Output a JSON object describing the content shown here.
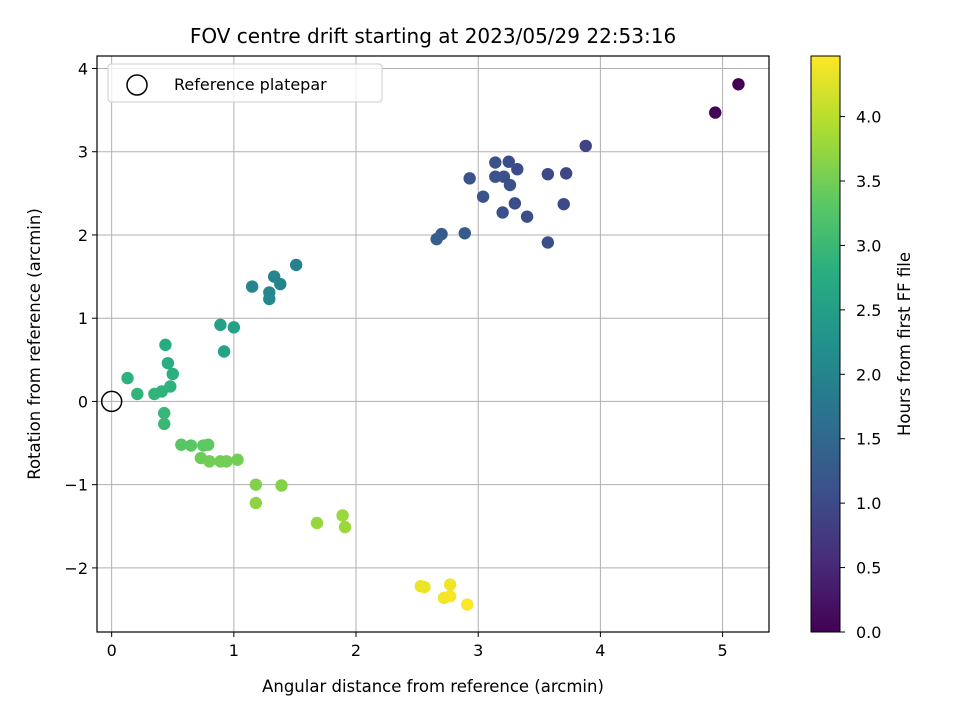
{
  "chart_data": {
    "type": "scatter",
    "title": "FOV centre drift starting at 2023/05/29 22:53:16",
    "xlabel": "Angular distance from reference (arcmin)",
    "ylabel": "Rotation from reference (arcmin)",
    "xlim": [
      -0.12,
      5.38
    ],
    "ylim": [
      -2.77,
      4.15
    ],
    "xticks": [
      0,
      1,
      2,
      3,
      4,
      5
    ],
    "yticks": [
      -2,
      -1,
      0,
      1,
      2,
      3,
      4
    ],
    "grid": true,
    "legend": {
      "placement": "top-left",
      "entries": [
        "Reference platepar"
      ]
    },
    "reference": {
      "x": 0,
      "y": 0,
      "marker": "open-circle"
    },
    "colorbar": {
      "label": "Hours from first FF file",
      "colormap": "viridis",
      "range": [
        0,
        4.47
      ],
      "ticks": [
        0.0,
        0.5,
        1.0,
        1.5,
        2.0,
        2.5,
        3.0,
        3.5,
        4.0
      ],
      "tick_labels": [
        "0.0",
        "0.5",
        "1.0",
        "1.5",
        "2.0",
        "2.5",
        "3.0",
        "3.5",
        "4.0"
      ]
    },
    "points": [
      {
        "x": 5.13,
        "y": 3.81,
        "c": 0.0
      },
      {
        "x": 4.94,
        "y": 3.47,
        "c": 0.05
      },
      {
        "x": 3.88,
        "y": 3.07,
        "c": 0.9
      },
      {
        "x": 3.72,
        "y": 2.74,
        "c": 0.95
      },
      {
        "x": 3.57,
        "y": 2.73,
        "c": 0.98
      },
      {
        "x": 3.7,
        "y": 2.37,
        "c": 0.98
      },
      {
        "x": 3.57,
        "y": 1.91,
        "c": 1.05
      },
      {
        "x": 3.4,
        "y": 2.22,
        "c": 1.05
      },
      {
        "x": 3.3,
        "y": 2.38,
        "c": 1.05
      },
      {
        "x": 3.32,
        "y": 2.79,
        "c": 1.02
      },
      {
        "x": 3.25,
        "y": 2.88,
        "c": 1.05
      },
      {
        "x": 3.21,
        "y": 2.7,
        "c": 1.08
      },
      {
        "x": 3.26,
        "y": 2.6,
        "c": 1.1
      },
      {
        "x": 3.14,
        "y": 2.87,
        "c": 1.1
      },
      {
        "x": 3.14,
        "y": 2.7,
        "c": 1.12
      },
      {
        "x": 3.2,
        "y": 2.27,
        "c": 1.1
      },
      {
        "x": 3.04,
        "y": 2.46,
        "c": 1.15
      },
      {
        "x": 2.93,
        "y": 2.68,
        "c": 1.15
      },
      {
        "x": 2.89,
        "y": 2.02,
        "c": 1.25
      },
      {
        "x": 2.7,
        "y": 2.01,
        "c": 1.3
      },
      {
        "x": 2.66,
        "y": 1.95,
        "c": 1.35
      },
      {
        "x": 1.51,
        "y": 1.64,
        "c": 1.95
      },
      {
        "x": 1.33,
        "y": 1.5,
        "c": 2.0
      },
      {
        "x": 1.38,
        "y": 1.41,
        "c": 2.02
      },
      {
        "x": 1.15,
        "y": 1.38,
        "c": 2.05
      },
      {
        "x": 1.29,
        "y": 1.31,
        "c": 2.05
      },
      {
        "x": 1.29,
        "y": 1.23,
        "c": 2.08
      },
      {
        "x": 0.89,
        "y": 0.92,
        "c": 2.55
      },
      {
        "x": 1.0,
        "y": 0.89,
        "c": 2.55
      },
      {
        "x": 0.92,
        "y": 0.6,
        "c": 2.58
      },
      {
        "x": 0.44,
        "y": 0.68,
        "c": 2.75
      },
      {
        "x": 0.46,
        "y": 0.46,
        "c": 2.8
      },
      {
        "x": 0.5,
        "y": 0.33,
        "c": 2.82
      },
      {
        "x": 0.13,
        "y": 0.28,
        "c": 2.85
      },
      {
        "x": 0.48,
        "y": 0.18,
        "c": 2.85
      },
      {
        "x": 0.41,
        "y": 0.12,
        "c": 2.88
      },
      {
        "x": 0.35,
        "y": 0.09,
        "c": 2.9
      },
      {
        "x": 0.21,
        "y": 0.09,
        "c": 2.9
      },
      {
        "x": 0.43,
        "y": -0.14,
        "c": 2.95
      },
      {
        "x": 0.43,
        "y": -0.27,
        "c": 2.98
      },
      {
        "x": 0.57,
        "y": -0.52,
        "c": 3.3
      },
      {
        "x": 0.65,
        "y": -0.53,
        "c": 3.32
      },
      {
        "x": 0.75,
        "y": -0.53,
        "c": 3.35
      },
      {
        "x": 0.79,
        "y": -0.52,
        "c": 3.35
      },
      {
        "x": 0.73,
        "y": -0.68,
        "c": 3.45
      },
      {
        "x": 0.8,
        "y": -0.72,
        "c": 3.48
      },
      {
        "x": 0.89,
        "y": -0.72,
        "c": 3.5
      },
      {
        "x": 0.94,
        "y": -0.72,
        "c": 3.5
      },
      {
        "x": 1.03,
        "y": -0.7,
        "c": 3.5
      },
      {
        "x": 1.18,
        "y": -1.0,
        "c": 3.6
      },
      {
        "x": 1.39,
        "y": -1.01,
        "c": 3.62
      },
      {
        "x": 1.18,
        "y": -1.22,
        "c": 3.68
      },
      {
        "x": 1.68,
        "y": -1.46,
        "c": 3.75
      },
      {
        "x": 1.89,
        "y": -1.37,
        "c": 3.78
      },
      {
        "x": 1.91,
        "y": -1.51,
        "c": 3.8
      },
      {
        "x": 2.53,
        "y": -2.22,
        "c": 4.35
      },
      {
        "x": 2.56,
        "y": -2.23,
        "c": 4.35
      },
      {
        "x": 2.77,
        "y": -2.2,
        "c": 4.38
      },
      {
        "x": 2.72,
        "y": -2.36,
        "c": 4.4
      },
      {
        "x": 2.77,
        "y": -2.34,
        "c": 4.42
      },
      {
        "x": 2.91,
        "y": -2.44,
        "c": 4.45
      }
    ]
  }
}
